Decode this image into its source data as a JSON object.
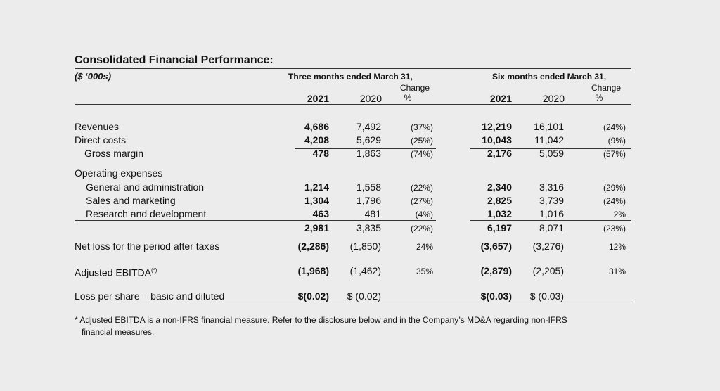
{
  "title": "Consolidated Financial Performance:",
  "unit": "($ ‘000s)",
  "periods": [
    {
      "label": "Three months ended March 31,",
      "cur_year": "2021",
      "prev_year": "2020",
      "change_label_1": "Change",
      "change_label_2": "%"
    },
    {
      "label": "Six months ended March 31,",
      "cur_year": "2021",
      "prev_year": "2020",
      "change_label_1": "Change",
      "change_label_2": "%"
    }
  ],
  "rows": [
    {
      "label": "Revenues",
      "q_cur": "4,686",
      "q_prev": "7,492",
      "q_chg": "(37%)",
      "s_cur": "12,219",
      "s_prev": "16,101",
      "s_chg": "(24%)"
    },
    {
      "label": "Direct costs",
      "q_cur": "4,208",
      "q_prev": "5,629",
      "q_chg": "(25%)",
      "s_cur": "10,043",
      "s_prev": "11,042",
      "s_chg": "(9%)"
    },
    {
      "label": "Gross margin",
      "q_cur": "478",
      "q_prev": "1,863",
      "q_chg": "(74%)",
      "s_cur": "2,176",
      "s_prev": "5,059",
      "s_chg": "(57%)"
    },
    {
      "label": "Operating expenses"
    },
    {
      "label": "General and administration",
      "q_cur": "1,214",
      "q_prev": "1,558",
      "q_chg": "(22%)",
      "s_cur": "2,340",
      "s_prev": "3,316",
      "s_chg": "(29%)"
    },
    {
      "label": "Sales and marketing",
      "q_cur": "1,304",
      "q_prev": "1,796",
      "q_chg": "(27%)",
      "s_cur": "2,825",
      "s_prev": "3,739",
      "s_chg": "(24%)"
    },
    {
      "label": "Research and development",
      "q_cur": "463",
      "q_prev": "481",
      "q_chg": "(4%)",
      "s_cur": "1,032",
      "s_prev": "1,016",
      "s_chg": "2%"
    },
    {
      "label": "",
      "q_cur": "2,981",
      "q_prev": "3,835",
      "q_chg": "(22%)",
      "s_cur": "6,197",
      "s_prev": "8,071",
      "s_chg": "(23%)"
    },
    {
      "label": "Net loss for the period after taxes",
      "q_cur": "(2,286)",
      "q_prev": "(1,850)",
      "q_chg": "24%",
      "s_cur": "(3,657)",
      "s_prev": "(3,276)",
      "s_chg": "12%"
    },
    {
      "label": "Adjusted EBITDA",
      "label_sup": "(*)",
      "q_cur": "(1,968)",
      "q_prev": "(1,462)",
      "q_chg": "35%",
      "s_cur": "(2,879)",
      "s_prev": "(2,205)",
      "s_chg": "31%"
    },
    {
      "label": "Loss per share – basic and diluted",
      "q_cur": "$(0.02)",
      "q_prev": "$ (0.02)",
      "q_chg": "",
      "s_cur": "$(0.03)",
      "s_prev": "$ (0.03)",
      "s_chg": ""
    }
  ],
  "footnote_1": "* Adjusted EBITDA is a non-IFRS financial measure. Refer to the disclosure below and in the Company’s MD&A regarding non-IFRS",
  "footnote_2": "financial measures."
}
